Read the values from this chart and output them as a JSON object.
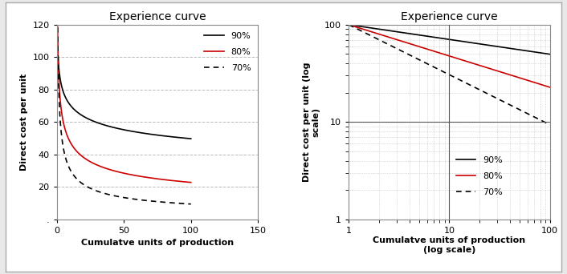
{
  "title": "Experience curve",
  "left_xlabel": "Cumulatve units of production",
  "left_ylabel": "Direct cost per unit",
  "right_xlabel": "Cumulatve units of production\n(log scale)",
  "right_ylabel": "Direct cost per unit (log\nscale)",
  "initial_cost": 100,
  "pr_90": 0.9,
  "pr_80": 0.8,
  "pr_70": 0.7,
  "left_xlim": [
    0,
    150
  ],
  "left_ylim": [
    0,
    120
  ],
  "right_xlim": [
    1,
    100
  ],
  "right_ylim": [
    1,
    100
  ],
  "color_90": "#000000",
  "color_80": "#cc0000",
  "color_70": "#000000",
  "legend_labels": [
    "90%",
    "80%",
    "70%"
  ],
  "grid_color": "#bbbbbb",
  "background_color": "#ffffff",
  "title_fontsize": 10,
  "label_fontsize": 8,
  "legend_fontsize": 8,
  "tick_fontsize": 8,
  "linewidth": 1.2
}
